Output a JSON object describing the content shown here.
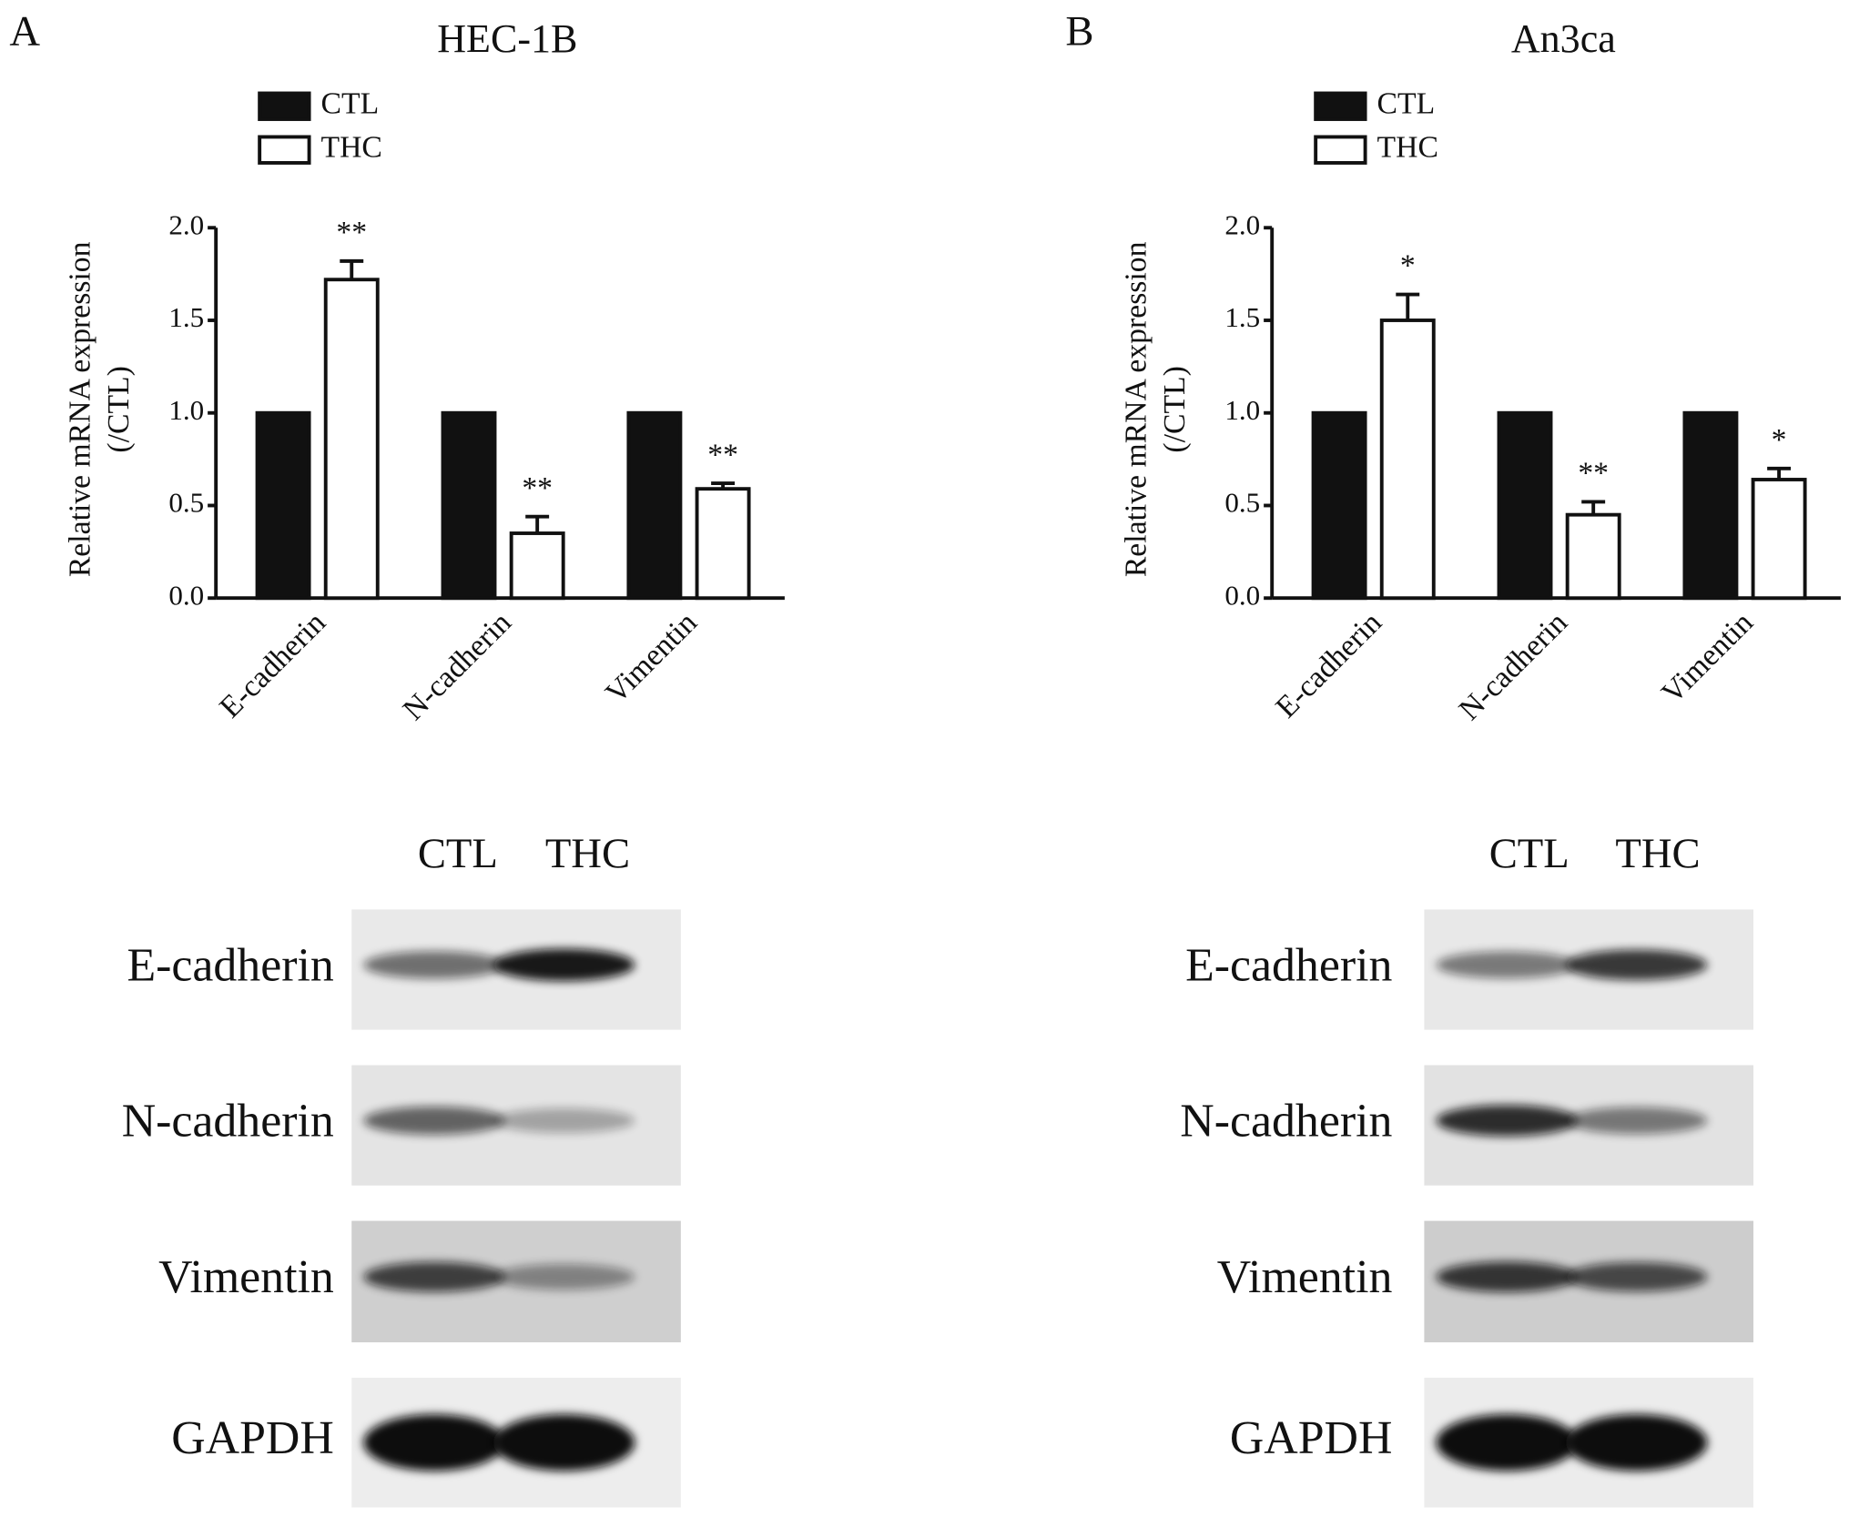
{
  "chart_data": [
    {
      "type": "bar",
      "panel_label": "A",
      "title": "HEC-1B",
      "y_label": [
        "Relative mRNA expression",
        "(/CTL)"
      ],
      "categories": [
        "E-cadherin",
        "N-cadherin",
        "Vimentin"
      ],
      "series": [
        {
          "name": "CTL",
          "color": "#111111",
          "values": [
            1,
            1,
            1
          ]
        },
        {
          "name": "THC",
          "color": "#ffffff",
          "values": [
            1.72,
            0.35,
            0.59
          ],
          "errors": [
            0.1,
            0.09,
            0.03
          ],
          "annotations": [
            "**",
            "**",
            "**"
          ]
        }
      ],
      "ylim": [
        0,
        2
      ],
      "yticks": [
        {
          "value": 0,
          "label": "0.0"
        },
        {
          "value": 0.5,
          "label": "0.5"
        },
        {
          "value": 1,
          "label": "1.0"
        },
        {
          "value": 1.5,
          "label": "1.5"
        },
        {
          "value": 2,
          "label": "2.0"
        }
      ],
      "legend": "top-left",
      "grid": false
    },
    {
      "type": "bar",
      "panel_label": "B",
      "title": "An3ca",
      "y_label": [
        "Relative mRNA expression",
        "(/CTL)"
      ],
      "categories": [
        "E-cadherin",
        "N-cadherin",
        "Vimentin"
      ],
      "series": [
        {
          "name": "CTL",
          "color": "#111111",
          "values": [
            1,
            1,
            1
          ]
        },
        {
          "name": "THC",
          "color": "#ffffff",
          "values": [
            1.5,
            0.45,
            0.64
          ],
          "errors": [
            0.14,
            0.07,
            0.06
          ],
          "annotations": [
            "*",
            "**",
            "*"
          ]
        }
      ],
      "ylim": [
        0,
        2
      ],
      "yticks": [
        {
          "value": 0,
          "label": "0.0"
        },
        {
          "value": 0.5,
          "label": "0.5"
        },
        {
          "value": 1,
          "label": "1.0"
        },
        {
          "value": 1.5,
          "label": "1.5"
        },
        {
          "value": 2,
          "label": "2.0"
        }
      ],
      "legend": "top-left",
      "grid": false
    }
  ],
  "blots": [
    {
      "lanes": [
        "CTL",
        "THC"
      ],
      "rows": [
        "E-cadherin",
        "N-cadherin",
        "Vimentin",
        "GAPDH"
      ]
    },
    {
      "lanes": [
        "CTL",
        "THC"
      ],
      "rows": [
        "E-cadherin",
        "N-cadherin",
        "Vimentin",
        "GAPDH"
      ]
    }
  ]
}
